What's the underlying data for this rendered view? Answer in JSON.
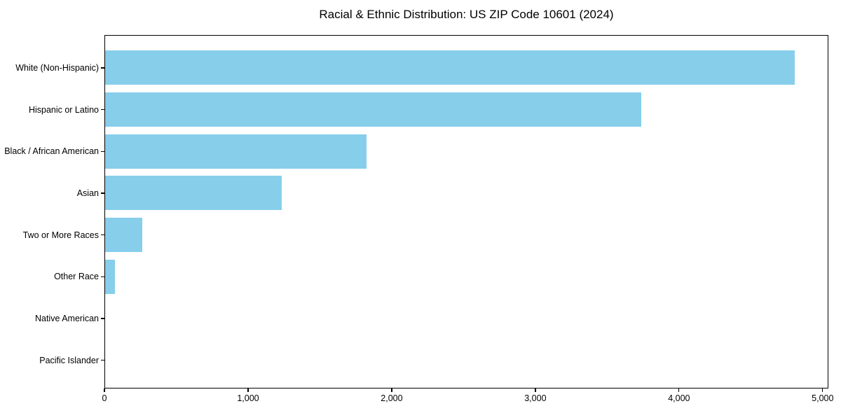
{
  "chart_data": {
    "type": "bar",
    "orientation": "horizontal",
    "title": "Racial & Ethnic Distribution: US ZIP Code 10601 (2024)",
    "categories": [
      "White (Non-Hispanic)",
      "Hispanic or Latino",
      "Black / African American",
      "Asian",
      "Two or More Races",
      "Other Race",
      "Native American",
      "Pacific Islander"
    ],
    "values": [
      4800,
      3730,
      1820,
      1230,
      260,
      70,
      0,
      0
    ],
    "xlabel": "",
    "ylabel": "",
    "xlim": [
      0,
      5040
    ],
    "xticks": [
      0,
      1000,
      2000,
      3000,
      4000,
      5000
    ],
    "xtick_labels": [
      "0",
      "1,000",
      "2,000",
      "3,000",
      "4,000",
      "5,000"
    ],
    "bar_color": "#87CEEB",
    "grid": false,
    "legend": null
  }
}
